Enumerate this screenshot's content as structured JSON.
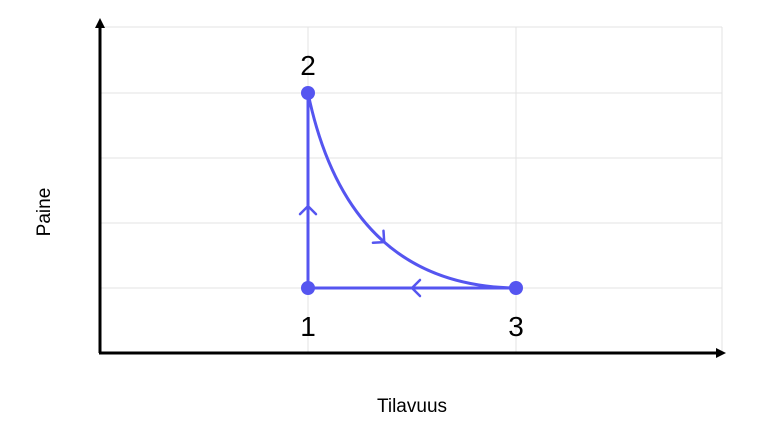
{
  "chart_data": {
    "type": "line",
    "title": "",
    "xlabel": "Tilavuus",
    "ylabel": "Paine",
    "xlim": [
      0,
      3
    ],
    "ylim": [
      0,
      4
    ],
    "grid": true,
    "ticks_shown": false,
    "color": "#5555f0",
    "points": [
      {
        "label": "1",
        "x": 1,
        "y": 1
      },
      {
        "label": "2",
        "x": 1,
        "y": 4
      },
      {
        "label": "3",
        "x": 2,
        "y": 1
      }
    ],
    "processes": [
      {
        "from": "1",
        "to": "2",
        "kind": "straight",
        "arrow": "up"
      },
      {
        "from": "2",
        "to": "3",
        "kind": "curve",
        "arrow": "down-right"
      },
      {
        "from": "3",
        "to": "1",
        "kind": "straight",
        "arrow": "left"
      }
    ]
  }
}
